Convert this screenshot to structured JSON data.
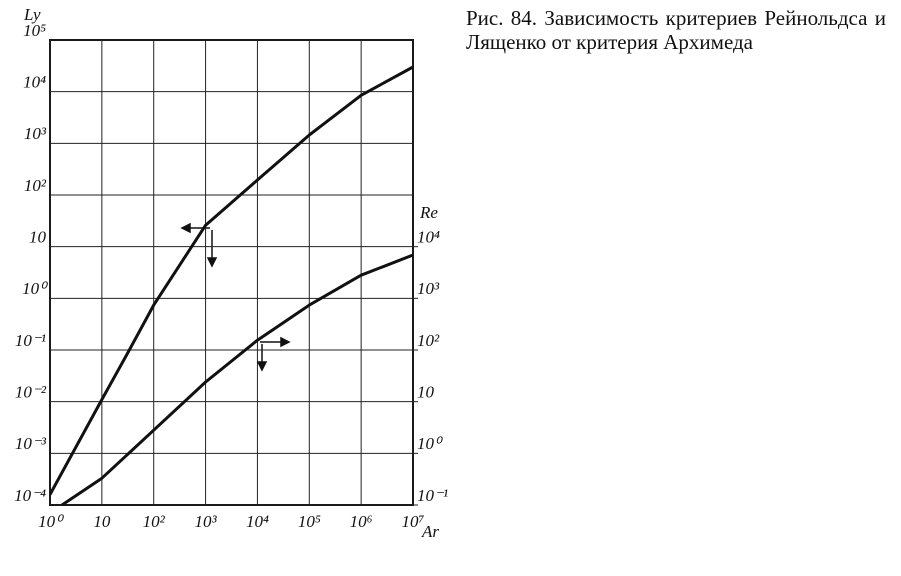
{
  "chart_data": {
    "type": "line",
    "title": "Рис. 84. Зависимость критериев Рейнольдса и Лященко от критерия Архимеда",
    "xlabel": "Ar",
    "ylabel": "Ly",
    "y2label": "Re",
    "log_x": true,
    "log_y": true,
    "grid": true,
    "xlim": [
      1,
      10000000
    ],
    "ylim": [
      0.0001,
      100000
    ],
    "y2lim": [
      0.1,
      100000000
    ],
    "xticks": [
      {
        "value": 1,
        "label": "10⁰"
      },
      10,
      {
        "value": 100,
        "label": "10²"
      },
      {
        "value": 1000,
        "label": "10³"
      },
      {
        "value": 10000,
        "label": "10⁴"
      },
      {
        "value": 100000,
        "label": "10⁵"
      },
      {
        "value": 1000000,
        "label": "10⁶"
      },
      {
        "value": 10000000,
        "label": "10⁷"
      }
    ],
    "yticks": [
      {
        "value": 0.0001,
        "label": "10⁻⁴"
      },
      {
        "value": 0.001,
        "label": "10⁻³"
      },
      {
        "value": 0.01,
        "label": "10⁻²"
      },
      {
        "value": 0.1,
        "label": "10⁻¹"
      },
      {
        "value": 1,
        "label": "10⁰"
      },
      10,
      {
        "value": 100,
        "label": "10²"
      },
      {
        "value": 1000,
        "label": "10³"
      },
      {
        "value": 10000,
        "label": "10⁴"
      },
      {
        "value": 100000,
        "label": "10⁵"
      }
    ],
    "y2ticks": [
      {
        "value": 0.1,
        "label": "10⁻¹"
      },
      {
        "value": 1,
        "label": "10⁰"
      },
      10,
      {
        "value": 100,
        "label": "10²"
      },
      {
        "value": 1000,
        "label": "10³"
      },
      {
        "value": 10000,
        "label": "10⁴"
      }
    ],
    "series": [
      {
        "color": "#111111",
        "x": [
          1,
          10,
          30,
          100,
          1000,
          10000,
          100000,
          1000000,
          10000000
        ],
        "values": [
          0.00016,
          0.011,
          0.08,
          0.74,
          26,
          195,
          1450,
          8500,
          30000
        ]
      },
      {
        "color": "#111111",
        "axis": "y2",
        "x": [
          1.7,
          10,
          100,
          1000,
          10000,
          100000,
          1000000,
          10000000
        ],
        "values": [
          0.1,
          0.33,
          2.8,
          24,
          155,
          740,
          2800,
          6900
        ]
      }
    ]
  }
}
